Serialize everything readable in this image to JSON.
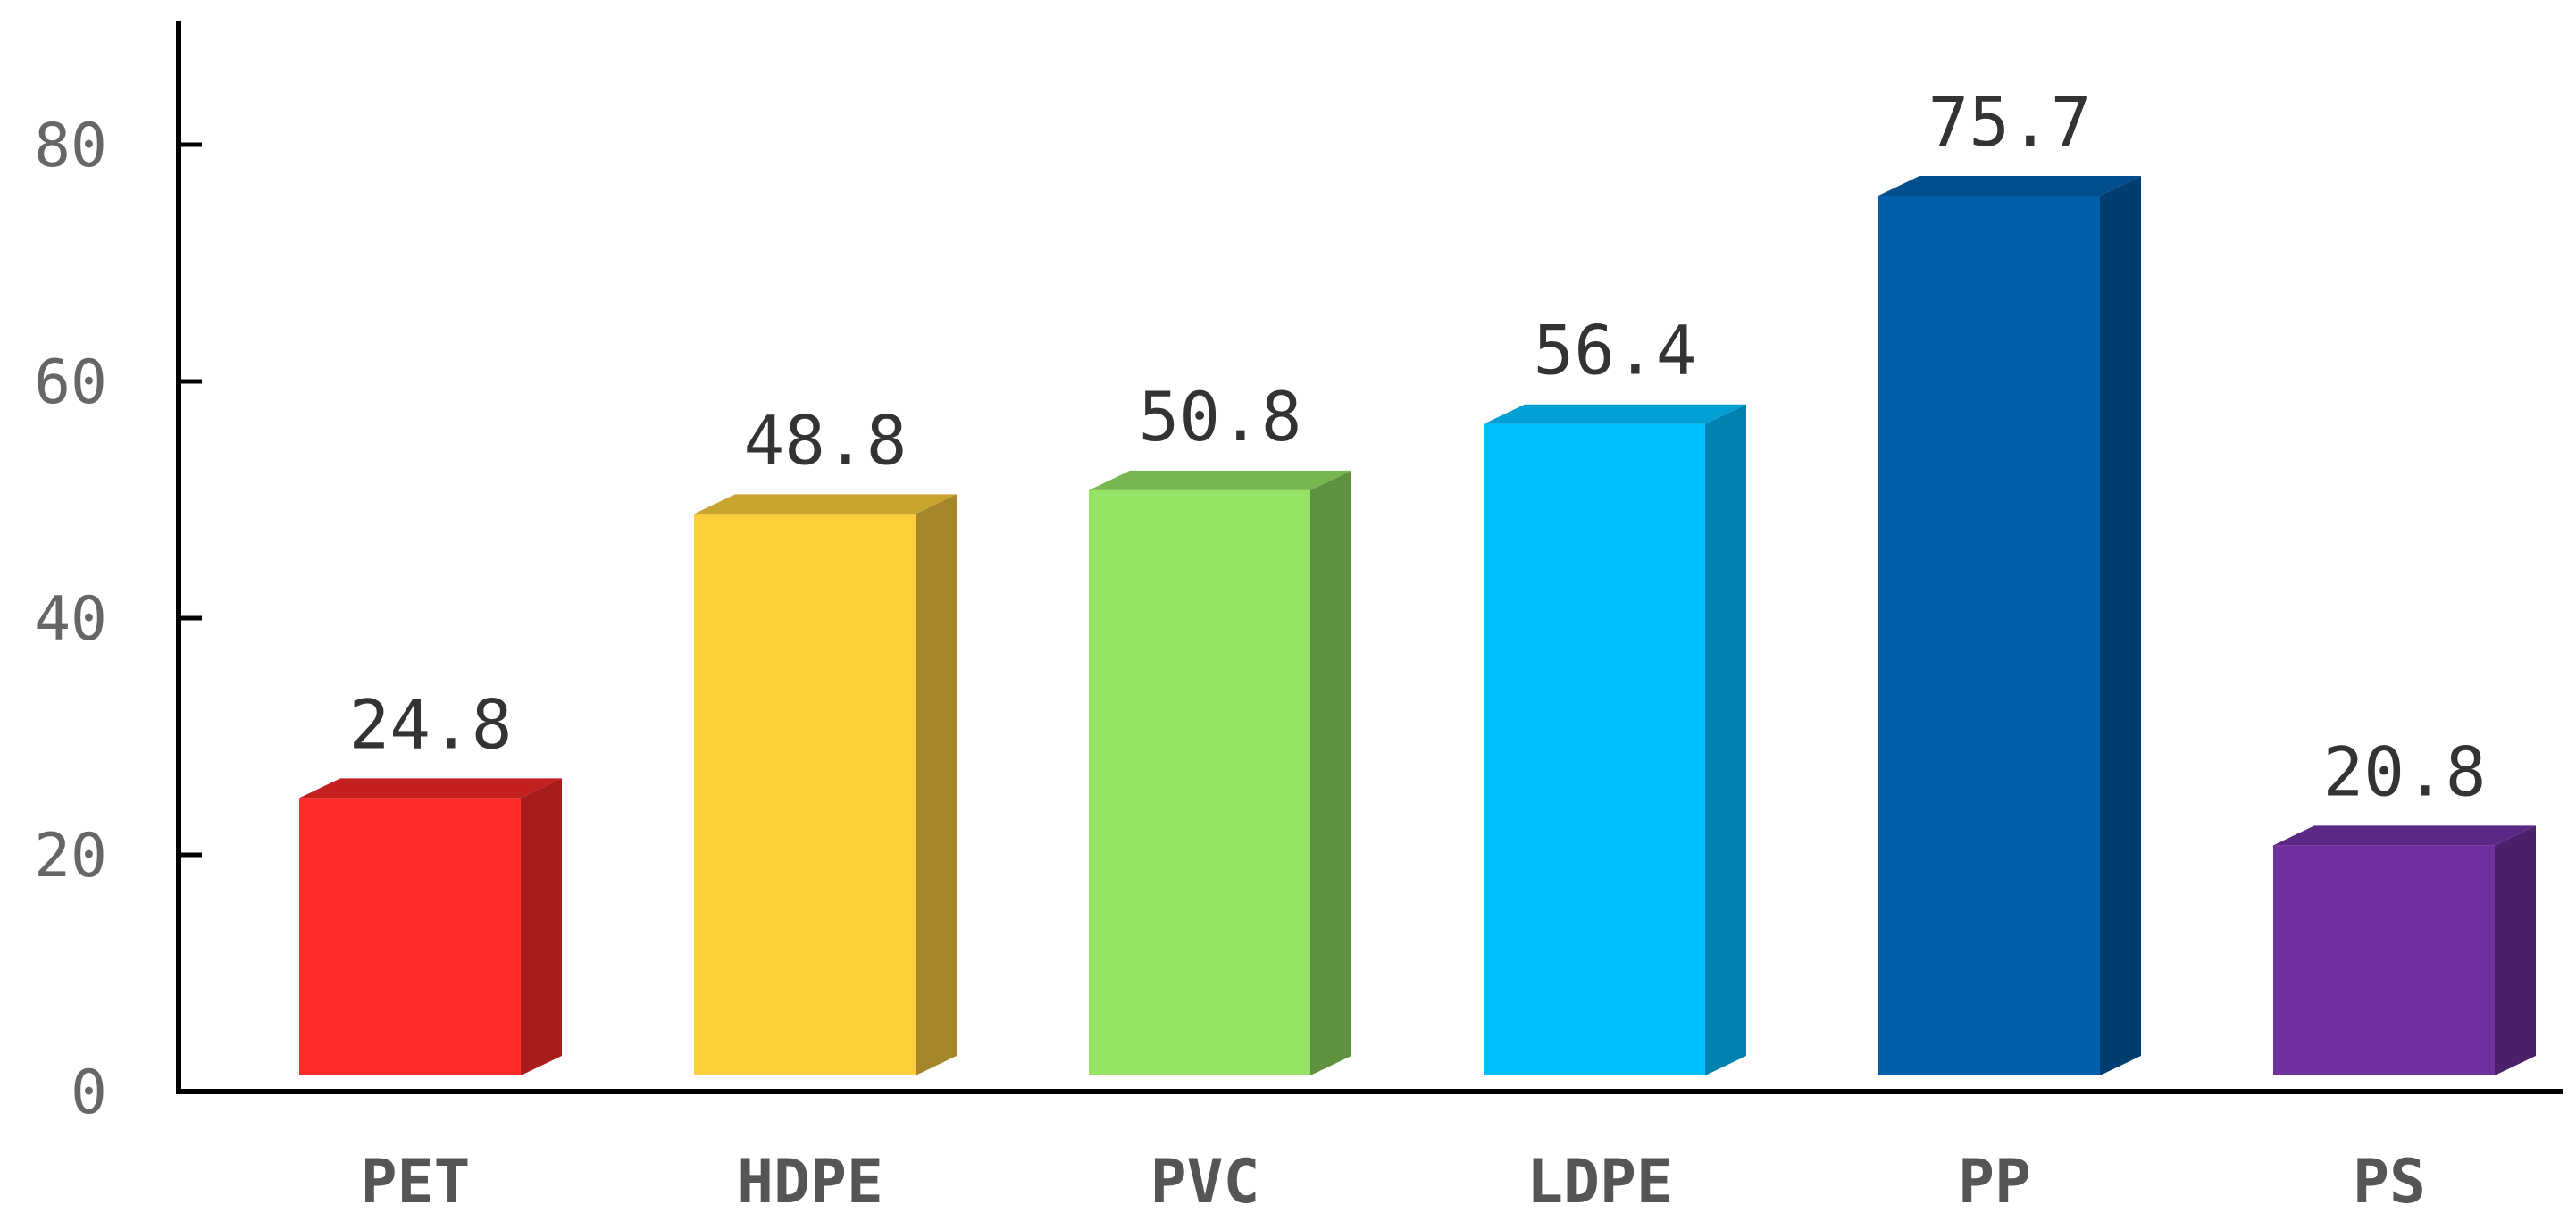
{
  "chart_data": {
    "type": "bar",
    "style": "3d",
    "categories": [
      "PET",
      "HDPE",
      "PVC",
      "LDPE",
      "PP",
      "PS"
    ],
    "values": [
      24.8,
      48.8,
      50.8,
      56.4,
      75.7,
      20.8
    ],
    "value_labels": [
      "24.8",
      "48.8",
      "50.8",
      "56.4",
      "75.7",
      "20.8"
    ],
    "colors": [
      {
        "front": "#ff2a2a",
        "side": "#a81c1c",
        "top": "#c42020"
      },
      {
        "front": "#fdd03b",
        "side": "#a6862a",
        "top": "#c9a530"
      },
      {
        "front": "#96e466",
        "side": "#5e9240",
        "top": "#76b84f"
      },
      {
        "front": "#00bfff",
        "side": "#0082ae",
        "top": "#009fd4"
      },
      {
        "front": "#005eab",
        "side": "#003d70",
        "top": "#004e8e"
      },
      {
        "front": "#7030a0",
        "side": "#4a2069",
        "top": "#5c2885"
      }
    ],
    "ylim": [
      0,
      80
    ],
    "yticks": [
      "0",
      "20",
      "40",
      "60",
      "80"
    ],
    "ytick_values": [
      0,
      20,
      40,
      60,
      80
    ],
    "title": "",
    "xlabel": "",
    "ylabel": "",
    "grid": false,
    "legend": "none"
  }
}
